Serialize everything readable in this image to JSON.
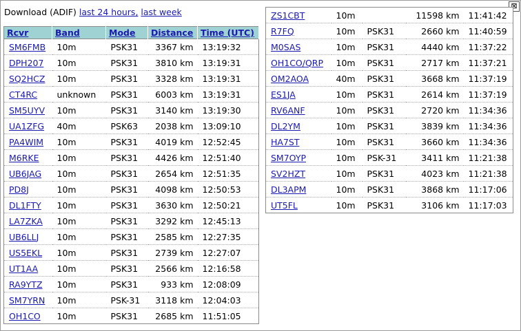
{
  "header": {
    "prefix": "Download (ADIF)",
    "link_24h": "last 24 hours,",
    "link_week": "last week",
    "close_glyph": "⊠"
  },
  "columns": [
    "Rcvr",
    "Band",
    "Mode",
    "Distance",
    "Time (UTC)"
  ],
  "left_rows": [
    {
      "call": "SM6FMB",
      "band": "10m",
      "mode": "PSK31",
      "dist": "3367 km",
      "time": "13:19:32"
    },
    {
      "call": "DPH207",
      "band": "10m",
      "mode": "PSK31",
      "dist": "3810 km",
      "time": "13:19:31"
    },
    {
      "call": "SQ2HCZ",
      "band": "10m",
      "mode": "PSK31",
      "dist": "3328 km",
      "time": "13:19:31"
    },
    {
      "call": "CT4RC",
      "band": "unknown",
      "mode": "PSK31",
      "dist": "6003 km",
      "time": "13:19:31"
    },
    {
      "call": "SM5UYV",
      "band": "10m",
      "mode": "PSK31",
      "dist": "3140 km",
      "time": "13:19:30"
    },
    {
      "call": "UA1ZFG",
      "band": "40m",
      "mode": "PSK63",
      "dist": "2038 km",
      "time": "13:09:10"
    },
    {
      "call": "PA4WIM",
      "band": "10m",
      "mode": "PSK31",
      "dist": "4019 km",
      "time": "12:52:45"
    },
    {
      "call": "M6RKE",
      "band": "10m",
      "mode": "PSK31",
      "dist": "4426 km",
      "time": "12:51:40"
    },
    {
      "call": "UB6JAG",
      "band": "10m",
      "mode": "PSK31",
      "dist": "2654 km",
      "time": "12:51:35"
    },
    {
      "call": "PD8J",
      "band": "10m",
      "mode": "PSK31",
      "dist": "4098 km",
      "time": "12:50:53"
    },
    {
      "call": "DL1FTY",
      "band": "10m",
      "mode": "PSK31",
      "dist": "3630 km",
      "time": "12:50:21"
    },
    {
      "call": "LA7ZKA",
      "band": "10m",
      "mode": "PSK31",
      "dist": "3292 km",
      "time": "12:45:13"
    },
    {
      "call": "UB6LLJ",
      "band": "10m",
      "mode": "PSK31",
      "dist": "2585 km",
      "time": "12:27:35"
    },
    {
      "call": "US5EKL",
      "band": "10m",
      "mode": "PSK31",
      "dist": "2739 km",
      "time": "12:27:07"
    },
    {
      "call": "UT1AA",
      "band": "10m",
      "mode": "PSK31",
      "dist": "2566 km",
      "time": "12:16:58"
    },
    {
      "call": "RA9YTZ",
      "band": "10m",
      "mode": "PSK31",
      "dist": "933 km",
      "time": "12:08:09"
    },
    {
      "call": "SM7YRN",
      "band": "10m",
      "mode": "PSK-31",
      "dist": "3118 km",
      "time": "12:04:03"
    },
    {
      "call": "OH1CO",
      "band": "10m",
      "mode": "PSK31",
      "dist": "2685 km",
      "time": "11:51:05"
    }
  ],
  "right_rows": [
    {
      "call": "ZS1CBT",
      "band": "10m",
      "mode": "",
      "dist": "11598 km",
      "time": "11:41:42"
    },
    {
      "call": "R7FQ",
      "band": "10m",
      "mode": "PSK31",
      "dist": "2660 km",
      "time": "11:40:59"
    },
    {
      "call": "M0SAS",
      "band": "10m",
      "mode": "PSK31",
      "dist": "4440 km",
      "time": "11:37:22"
    },
    {
      "call": "OH1CO/QRP",
      "band": "10m",
      "mode": "PSK31",
      "dist": "2717 km",
      "time": "11:37:21"
    },
    {
      "call": "OM2AOA",
      "band": "40m",
      "mode": "PSK31",
      "dist": "3668 km",
      "time": "11:37:19"
    },
    {
      "call": "ES1JA",
      "band": "10m",
      "mode": "PSK31",
      "dist": "2614 km",
      "time": "11:37:19"
    },
    {
      "call": "RV6ANF",
      "band": "10m",
      "mode": "PSK31",
      "dist": "2720 km",
      "time": "11:34:36"
    },
    {
      "call": "DL2YM",
      "band": "10m",
      "mode": "PSK31",
      "dist": "3839 km",
      "time": "11:34:36"
    },
    {
      "call": "HA7ST",
      "band": "10m",
      "mode": "PSK31",
      "dist": "3660 km",
      "time": "11:34:36"
    },
    {
      "call": "SM7OYP",
      "band": "10m",
      "mode": "PSK-31",
      "dist": "3411 km",
      "time": "11:21:38"
    },
    {
      "call": "SV2HZT",
      "band": "10m",
      "mode": "PSK31",
      "dist": "4023 km",
      "time": "11:21:38"
    },
    {
      "call": "DL3APM",
      "band": "10m",
      "mode": "PSK31",
      "dist": "3868 km",
      "time": "11:17:06"
    },
    {
      "call": "UT5FL",
      "band": "10m",
      "mode": "PSK31",
      "dist": "3106 km",
      "time": "11:17:03"
    }
  ]
}
